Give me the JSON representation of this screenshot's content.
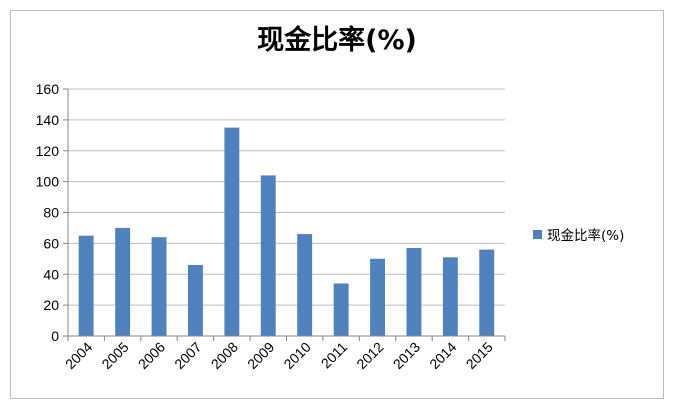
{
  "chart_data": {
    "type": "bar",
    "title": "现金比率(%)",
    "categories": [
      "2004",
      "2005",
      "2006",
      "2007",
      "2008",
      "2009",
      "2010",
      "2011",
      "2012",
      "2013",
      "2014",
      "2015"
    ],
    "series": [
      {
        "name": "现金比率(%)",
        "values": [
          65,
          70,
          64,
          46,
          135,
          104,
          66,
          34,
          50,
          57,
          51,
          56
        ],
        "color": "#4f81bd"
      }
    ],
    "yticks": [
      "0",
      "20",
      "40",
      "60",
      "80",
      "100",
      "120",
      "140",
      "160"
    ],
    "ylim": [
      0,
      160
    ],
    "grid": true,
    "legend_position": "right"
  }
}
